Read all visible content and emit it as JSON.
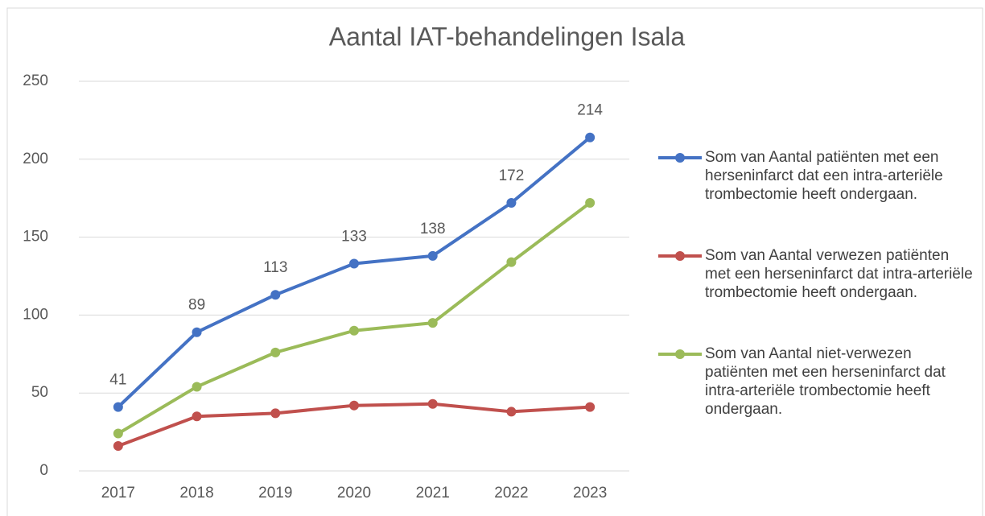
{
  "chart_data": {
    "type": "line",
    "title": "Aantal IAT-behandelingen Isala",
    "categories": [
      "2017",
      "2018",
      "2019",
      "2020",
      "2021",
      "2022",
      "2023"
    ],
    "series": [
      {
        "name": "Som van Aantal patiënten met een herseninfarct dat een intra-arteriële trombectomie heeft ondergaan.",
        "color": "#4472c4",
        "show_labels": true,
        "values": [
          41,
          89,
          113,
          133,
          138,
          172,
          214
        ]
      },
      {
        "name": "Som van Aantal verwezen patiënten met een herseninfarct dat intra-arteriële trombectomie heeft ondergaan.",
        "color": "#c0504d",
        "show_labels": false,
        "values": [
          16,
          35,
          37,
          42,
          43,
          38,
          41
        ]
      },
      {
        "name": "Som van Aantal niet-verwezen patiënten met een herseninfarct dat intra-arteriële trombectomie heeft ondergaan.",
        "color": "#9bbb59",
        "show_labels": false,
        "values": [
          24,
          54,
          76,
          90,
          95,
          134,
          172
        ]
      }
    ],
    "ylim": [
      0,
      250
    ],
    "yticks": [
      0,
      50,
      100,
      150,
      200,
      250
    ],
    "grid": true,
    "legend": "right"
  }
}
